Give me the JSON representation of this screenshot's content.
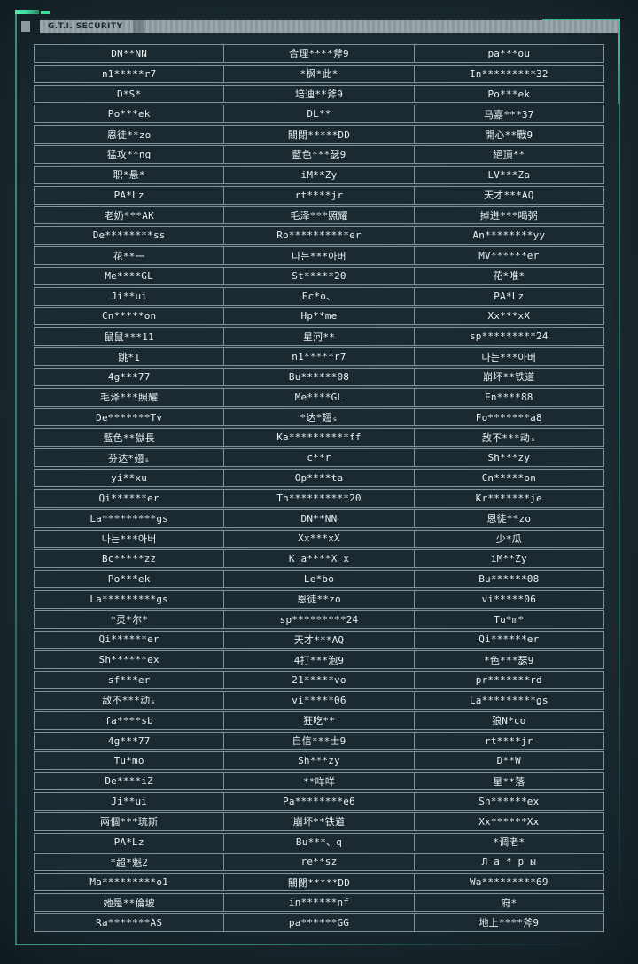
{
  "header": {
    "title": "G.T.I. SECURITY"
  },
  "colors": {
    "accent_green": "#3fdf9e",
    "frame_teal": "#2e7c69",
    "row_border": "#7e9196",
    "row_bg": "#1b2a31",
    "bar_text": "#1d2c32",
    "text": "#e9f0f2"
  },
  "roster": {
    "columns": 3,
    "rows": [
      [
        "DN**NN",
        "合理****斧9",
        "pa***ou"
      ],
      [
        "n1*****r7",
        "*枫*此*",
        "In*********32"
      ],
      [
        "D*S*",
        "培迪**斧9",
        "Po***ek"
      ],
      [
        "Po***ek",
        "DL**",
        "马嘉***37"
      ],
      [
        "恩徒**zo",
        "關閉*****DD",
        "開心**戰9"
      ],
      [
        "猛攻**ng",
        "藍色***瑟9",
        "絕頂**"
      ],
      [
        "职*悬*",
        "iM**Zy",
        "LV***Za"
      ],
      [
        "PA*Lz",
        "rt****jr",
        "天才***AQ"
      ],
      [
        "老奶***AK",
        "毛泽***照耀",
        "掉进***喝粥"
      ],
      [
        "De********ss",
        "Ro**********er",
        "An********yy"
      ],
      [
        "花**一",
        "나는***아버",
        "MV******er"
      ],
      [
        "Me****GL",
        "St*****20",
        "花*唯*"
      ],
      [
        "Ji**ui",
        "Ec*o、",
        "PA*Lz"
      ],
      [
        "Cn*****on",
        "Hp**me",
        "Xx***xX"
      ],
      [
        "鼠鼠***11",
        "星河**",
        "sp*********24"
      ],
      [
        "跳*1",
        "n1*****r7",
        "나는***아버"
      ],
      [
        "4g***77",
        "Bu******08",
        "崩坏**铁道"
      ],
      [
        "毛泽***照耀",
        "Me****GL",
        "En****88"
      ],
      [
        "De*******Tv",
        "*达*翅ₛ",
        "Fo*******a8"
      ],
      [
        "藍色**獄長",
        "Ka**********ff",
        "敌不***动ₛ"
      ],
      [
        "芬达*翅ₛ",
        "c**r",
        "Sh***zy"
      ],
      [
        "yi**xu",
        "Op****ta",
        "Cn*****on"
      ],
      [
        "Qi******er",
        "Th**********20",
        "Kr*******je"
      ],
      [
        "La*********gs",
        "DN**NN",
        "恩徒**zo"
      ],
      [
        "나는***아버",
        "Xx***xX",
        "少*瓜"
      ],
      [
        "Bc*****zz",
        "K a****X x",
        "iM**Zy"
      ],
      [
        "Po***ek",
        "Le*bo",
        "Bu******08"
      ],
      [
        "La*********gs",
        "恩徒**zo",
        "vi*****06"
      ],
      [
        "*灵*尔*",
        "sp*********24",
        "Tu*m*"
      ],
      [
        "Qi******er",
        "天才***AQ",
        "Qi******er"
      ],
      [
        "Sh******ex",
        "4打***泡9",
        "*色***瑟9"
      ],
      [
        "sf***er",
        "21*****vo",
        "pr*******rd"
      ],
      [
        "敌不***动ₛ",
        "vi*****06",
        "La*********gs"
      ],
      [
        "fa****sb",
        "狂吃**",
        "狼N*co"
      ],
      [
        "4g***77",
        "自信***士9",
        "rt****jr"
      ],
      [
        "Tu*mo",
        "Sh***zy",
        "D**W"
      ],
      [
        "De****iZ",
        "**咩咩",
        "星**落"
      ],
      [
        "Ji**ui",
        "Pa********e6",
        "Sh******ex"
      ],
      [
        "兩個***琉斯",
        "崩坏**铁道",
        "Xx******Xx"
      ],
      [
        "PA*Lz",
        "Bu***、q",
        "*调老*"
      ],
      [
        "*超*魁2",
        "re**sz",
        "Л а * р ы"
      ],
      [
        "Ma*********o1",
        "關閉*****DD",
        "Wa*********69"
      ],
      [
        "她是**倫坡",
        "in******nf",
        "府*"
      ],
      [
        "Ra*******AS",
        "pa******GG",
        "地上****斧9"
      ]
    ]
  }
}
